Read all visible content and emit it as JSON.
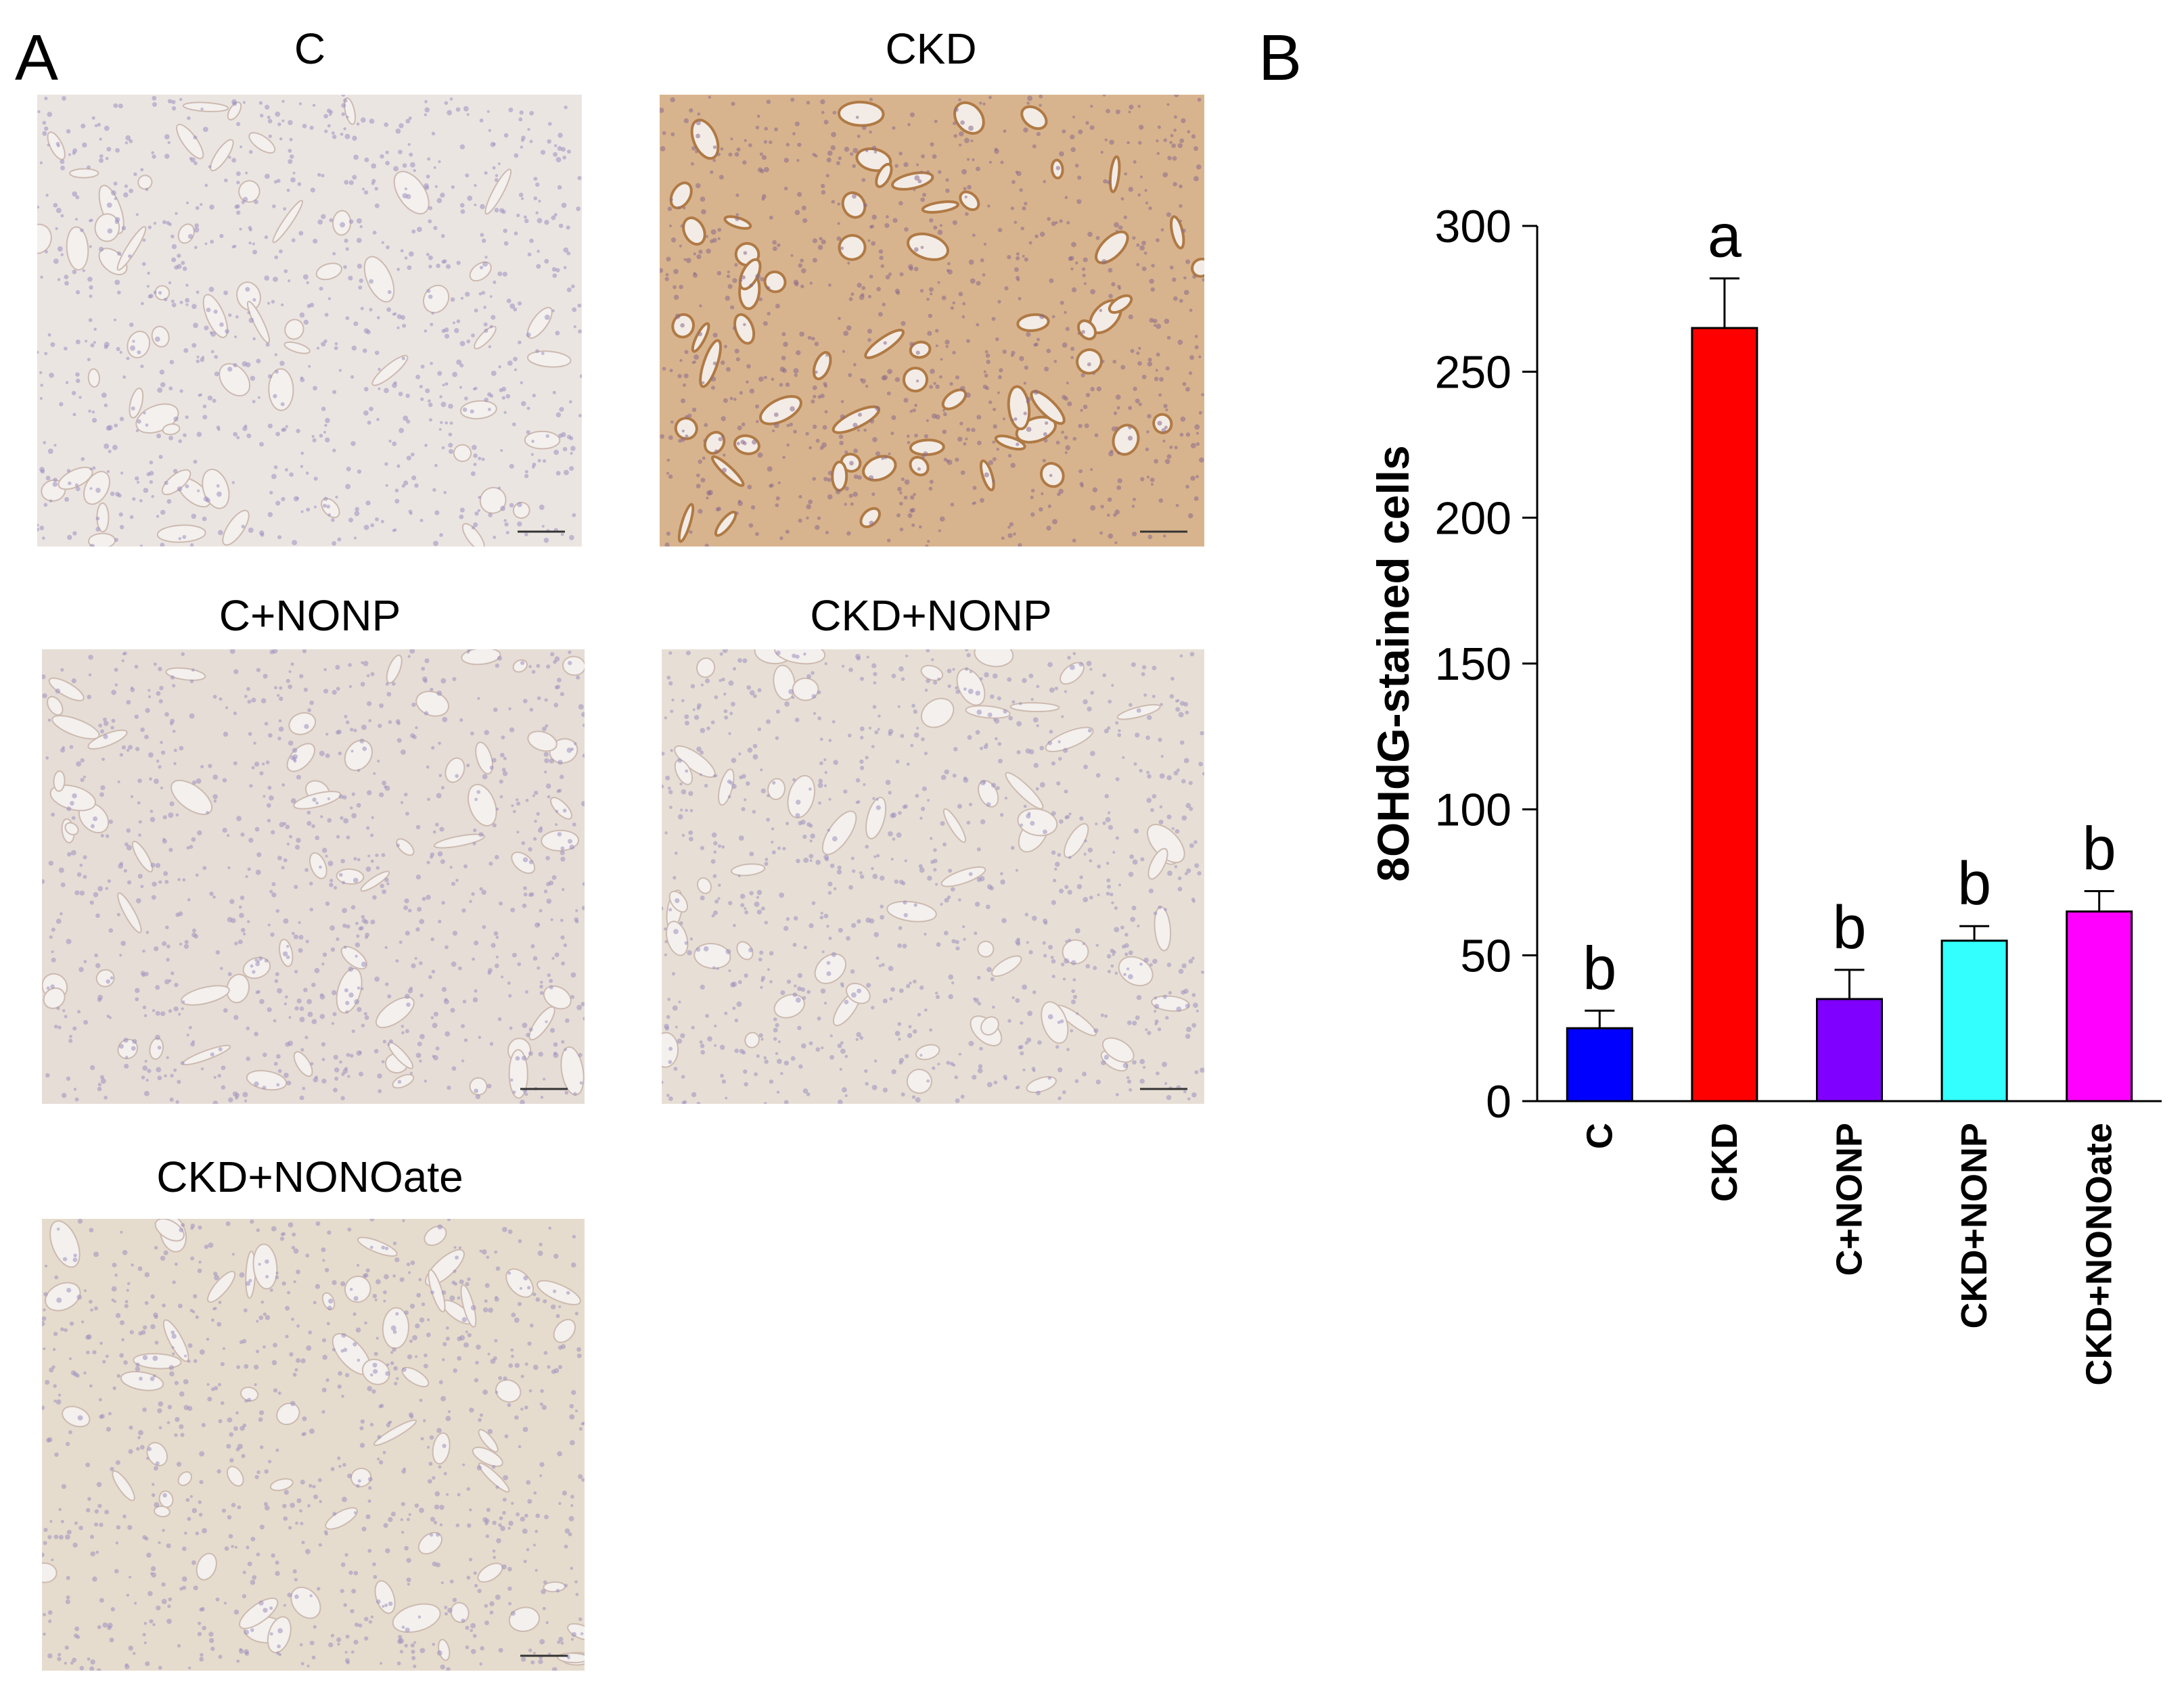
{
  "panel_a": {
    "letter": "A",
    "images": [
      {
        "label": "C",
        "stain": "light",
        "tint": "#ebe5e2"
      },
      {
        "label": "CKD",
        "stain": "strong",
        "tint": "#d8b48e"
      },
      {
        "label": "C+NONP",
        "stain": "light",
        "tint": "#e6ddd6"
      },
      {
        "label": "CKD+NONP",
        "stain": "light",
        "tint": "#e7dfd5"
      },
      {
        "label": "CKD+NONOate",
        "stain": "light",
        "tint": "#e6dccd"
      }
    ]
  },
  "panel_b": {
    "letter": "B"
  },
  "colors": {
    "bar_outline": "#000000"
  },
  "chart_data": {
    "type": "bar",
    "title": "",
    "xlabel": "",
    "ylabel": "8OHdG-stained cells",
    "ylim": [
      0,
      300
    ],
    "yticks": [
      "0",
      "50",
      "100",
      "150",
      "200",
      "250",
      "300"
    ],
    "grid": false,
    "categories": [
      "C",
      "CKD",
      "C+NONP",
      "CKD+NONP",
      "CKD+NONOate"
    ],
    "values": [
      25,
      265,
      35,
      55,
      65
    ],
    "errors": [
      6,
      17,
      10,
      5,
      7
    ],
    "significance_labels": [
      "b",
      "a",
      "b",
      "b",
      "b"
    ],
    "bar_colors": [
      "#0000ff",
      "#ff0000",
      "#8000ff",
      "#33ffff",
      "#ff00ff"
    ]
  }
}
